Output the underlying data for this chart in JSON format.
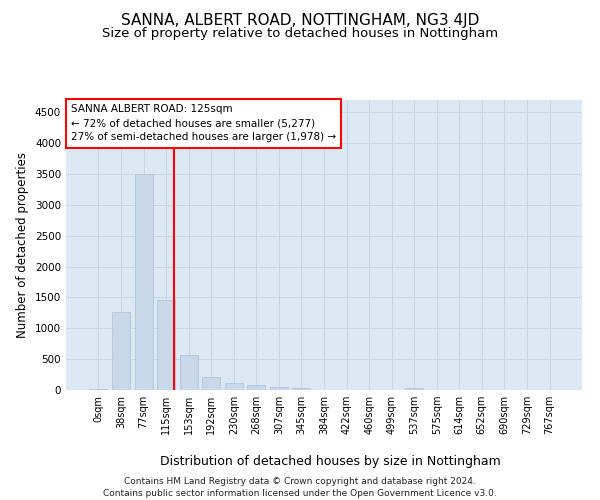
{
  "title": "SANNA, ALBERT ROAD, NOTTINGHAM, NG3 4JD",
  "subtitle": "Size of property relative to detached houses in Nottingham",
  "xlabel": "Distribution of detached houses by size in Nottingham",
  "ylabel": "Number of detached properties",
  "bar_labels": [
    "0sqm",
    "38sqm",
    "77sqm",
    "115sqm",
    "153sqm",
    "192sqm",
    "230sqm",
    "268sqm",
    "307sqm",
    "345sqm",
    "384sqm",
    "422sqm",
    "460sqm",
    "499sqm",
    "537sqm",
    "575sqm",
    "614sqm",
    "652sqm",
    "690sqm",
    "729sqm",
    "767sqm"
  ],
  "bar_values": [
    10,
    1260,
    3500,
    1460,
    560,
    210,
    110,
    75,
    55,
    35,
    5,
    0,
    0,
    0,
    30,
    0,
    0,
    0,
    0,
    0,
    0
  ],
  "bar_color": "#c8d8ea",
  "bar_edgecolor": "#a8c0d4",
  "ylim": [
    0,
    4700
  ],
  "yticks": [
    0,
    500,
    1000,
    1500,
    2000,
    2500,
    3000,
    3500,
    4000,
    4500
  ],
  "grid_color": "#c8d4e4",
  "background_color": "#dce8f4",
  "red_line_x": 3.37,
  "annotation_line1": "SANNA ALBERT ROAD: 125sqm",
  "annotation_line2": "← 72% of detached houses are smaller (5,277)",
  "annotation_line3": "27% of semi-detached houses are larger (1,978) →",
  "footer": "Contains HM Land Registry data © Crown copyright and database right 2024.\nContains public sector information licensed under the Open Government Licence v3.0.",
  "title_fontsize": 11,
  "subtitle_fontsize": 9.5,
  "ylabel_fontsize": 8.5,
  "xlabel_fontsize": 9,
  "tick_fontsize": 7,
  "ann_fontsize": 7.5,
  "footer_fontsize": 6.5
}
